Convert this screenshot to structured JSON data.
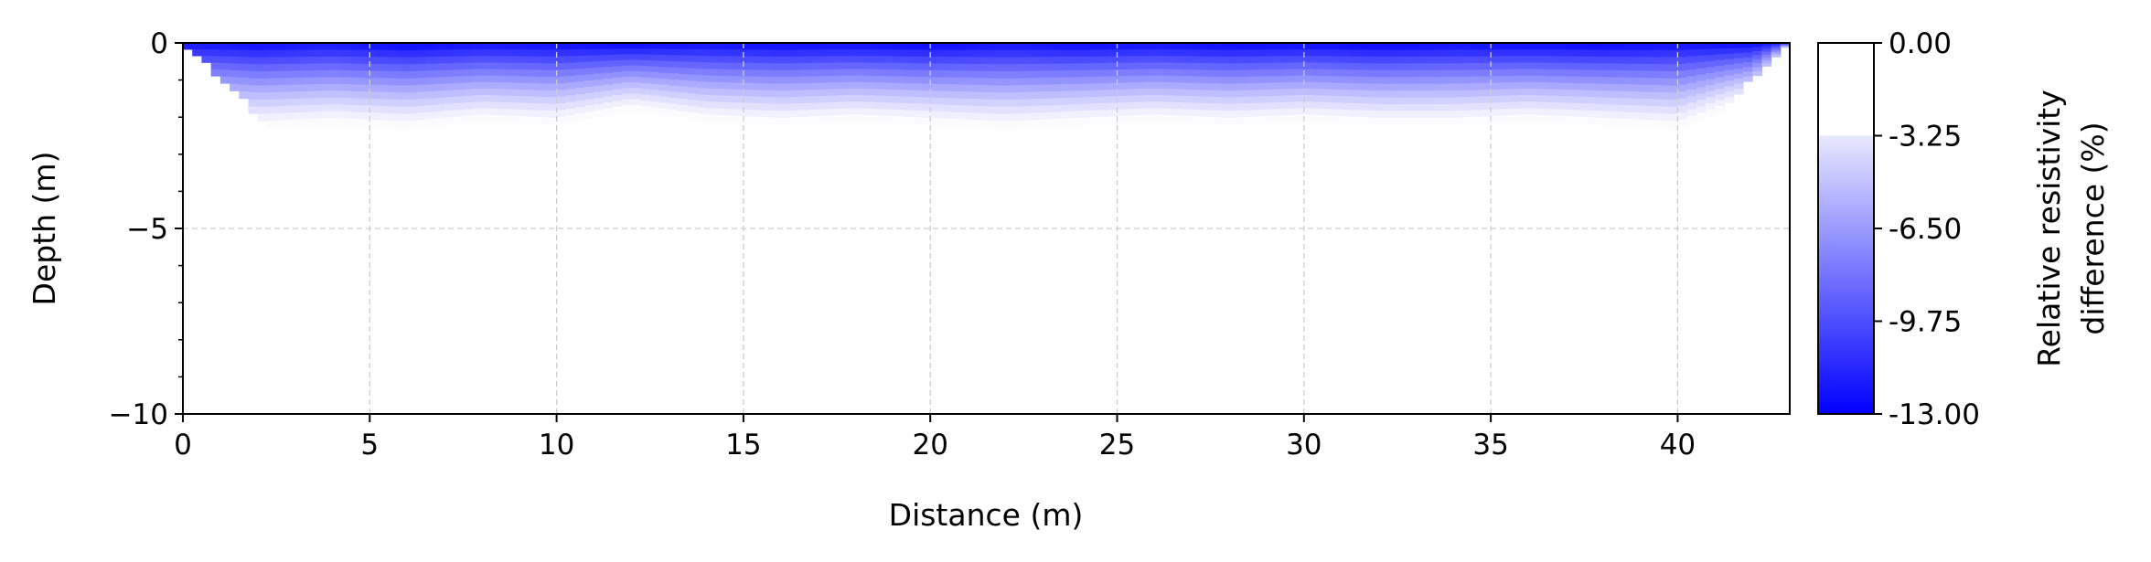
{
  "chart_data": {
    "type": "heatmap",
    "title": "",
    "xlabel": "Distance (m)",
    "ylabel": "Depth (m)",
    "xlim": [
      0,
      43
    ],
    "ylim": [
      -10,
      0
    ],
    "xticks": [
      0,
      5,
      10,
      15,
      20,
      25,
      30,
      35,
      40
    ],
    "yticks": [
      0,
      -5,
      -10
    ],
    "ytick_labels": [
      "0",
      "−5",
      "−10"
    ],
    "grid": true,
    "colorbar": {
      "label_line1": "Relative resistivity",
      "label_line2": "difference (%)",
      "range": [
        -13.0,
        0.0
      ],
      "ticks": [
        0.0,
        -3.25,
        -6.5,
        -9.75,
        -13.0
      ],
      "tick_labels": [
        "0.00",
        "-3.25",
        "-6.50",
        "-9.75",
        "-13.00"
      ],
      "cmap_start": "#ffffff",
      "cmap_end": "#0000ff"
    },
    "data_outline": [
      [
        0,
        0
      ],
      [
        2.8,
        -2.7
      ],
      [
        40.2,
        -2.7
      ],
      [
        43,
        0
      ]
    ],
    "depth_profile": {
      "note_free": true,
      "x": [
        0,
        2,
        4,
        6,
        8,
        10,
        12,
        14,
        16,
        18,
        20,
        22,
        24,
        26,
        28,
        30,
        32,
        34,
        36,
        38,
        40,
        42,
        43
      ],
      "top_value": [
        -12,
        -12.5,
        -12,
        -12.8,
        -12.2,
        -12.5,
        -12.8,
        -12.3,
        -12.6,
        -12.4,
        -12.8,
        -12.2,
        -12.6,
        -12.3,
        -12.7,
        -12.5,
        -12.9,
        -12.4,
        -12.6,
        -12.8,
        -12.3,
        -12.6,
        -11
      ],
      "zero_depth": [
        -2.0,
        -2.3,
        -2.2,
        -2.3,
        -2.1,
        -2.2,
        -1.8,
        -2.1,
        -2.2,
        -2.1,
        -2.2,
        -2.3,
        -2.2,
        -2.1,
        -2.2,
        -2.1,
        -2.2,
        -2.2,
        -2.1,
        -2.2,
        -2.3,
        -1.5,
        0
      ]
    }
  }
}
